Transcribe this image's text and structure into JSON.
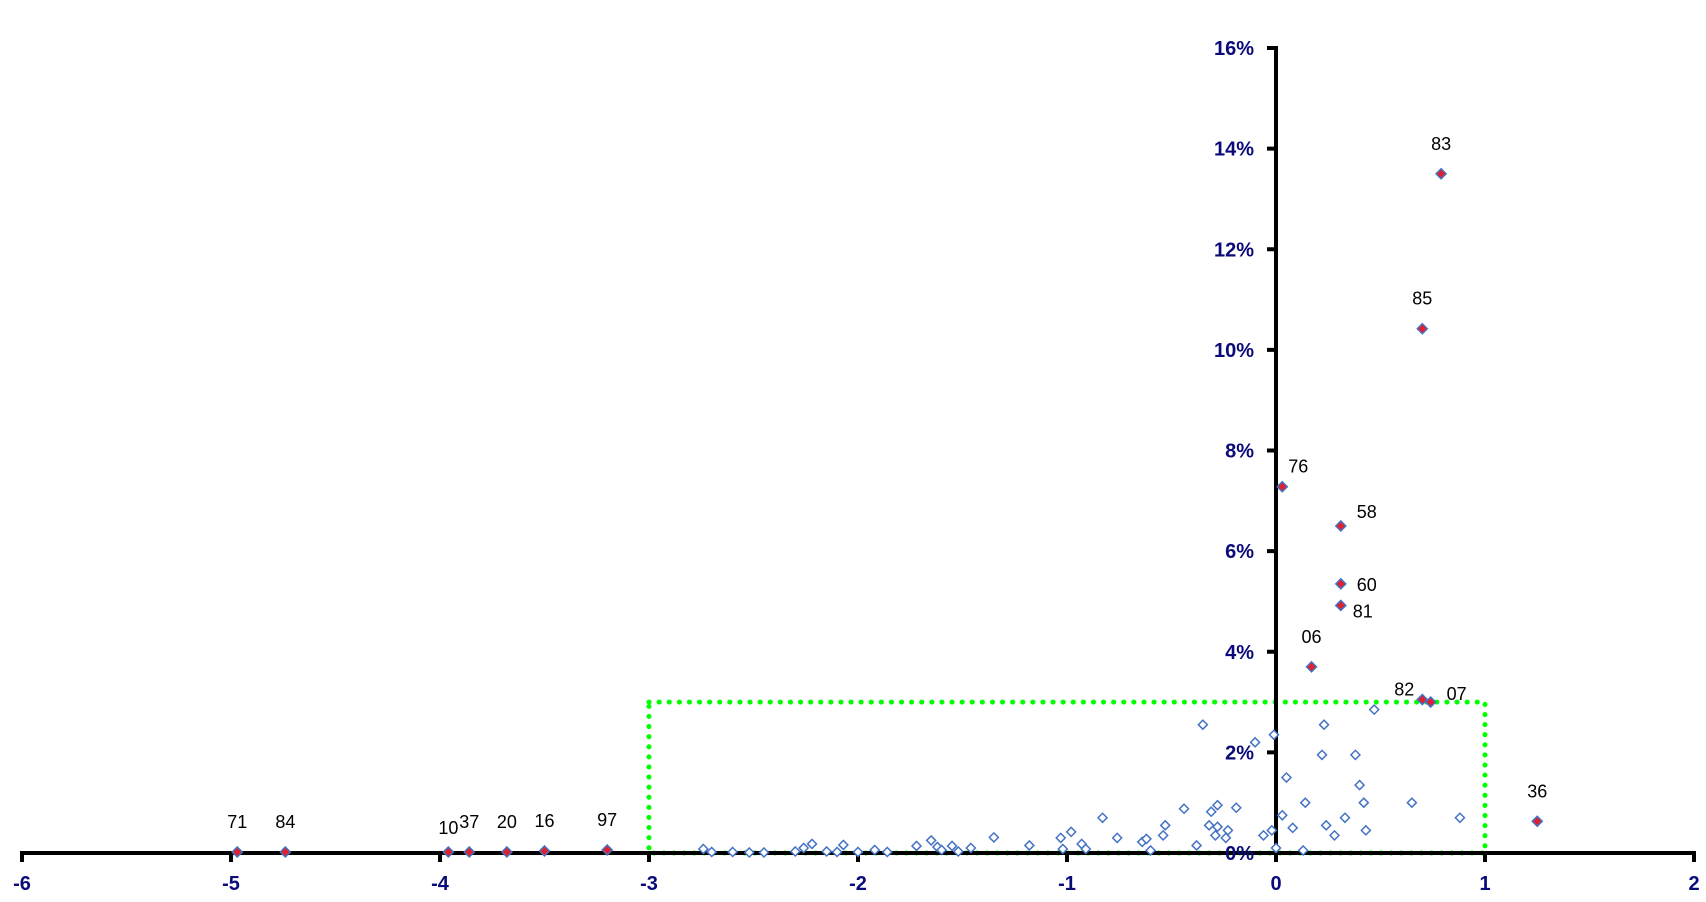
{
  "chart_data": {
    "type": "scatter",
    "title": "",
    "xlabel": "",
    "ylabel": "",
    "xlim": [
      -6,
      2
    ],
    "ylim": [
      0,
      0.16
    ],
    "x_ticks": [
      {
        "value": -6,
        "label": "-6"
      },
      {
        "value": -5,
        "label": "-5"
      },
      {
        "value": -4,
        "label": "-4"
      },
      {
        "value": -3,
        "label": "-3"
      },
      {
        "value": -2,
        "label": "-2"
      },
      {
        "value": -1,
        "label": "-1"
      },
      {
        "value": 0,
        "label": "0"
      },
      {
        "value": 1,
        "label": "1"
      },
      {
        "value": 2,
        "label": "2"
      }
    ],
    "y_ticks": [
      {
        "value": 0,
        "label": "0%"
      },
      {
        "value": 0.02,
        "label": "2%"
      },
      {
        "value": 0.04,
        "label": "4%"
      },
      {
        "value": 0.06,
        "label": "6%"
      },
      {
        "value": 0.08,
        "label": "8%"
      },
      {
        "value": 0.1,
        "label": "10%"
      },
      {
        "value": 0.12,
        "label": "12%"
      },
      {
        "value": 0.14,
        "label": "14%"
      },
      {
        "value": 0.16,
        "label": "16%"
      }
    ],
    "highlight_box": {
      "x": [
        -3,
        1
      ],
      "y": [
        0,
        0.03
      ],
      "color": "#00ff00",
      "style": "dotted"
    },
    "colors": {
      "axis": "#000000",
      "tick_text": "#0a0a7a",
      "marker_edge": "#4472c4",
      "highlight_fill": "#e0202c"
    },
    "series": [
      {
        "marker": "diamond-outline",
        "points": [
          {
            "x": -2.74,
            "y": 0.0008
          },
          {
            "x": -2.7,
            "y": 0.0002
          },
          {
            "x": -2.6,
            "y": 0.0002
          },
          {
            "x": -2.52,
            "y": 0.0001
          },
          {
            "x": -2.45,
            "y": 0.0001
          },
          {
            "x": -2.3,
            "y": 0.0003
          },
          {
            "x": -2.26,
            "y": 0.001
          },
          {
            "x": -2.22,
            "y": 0.0018
          },
          {
            "x": -2.15,
            "y": 0.0003
          },
          {
            "x": -2.1,
            "y": 0.0002
          },
          {
            "x": -2.07,
            "y": 0.0016
          },
          {
            "x": -2.0,
            "y": 0.0002
          },
          {
            "x": -1.92,
            "y": 0.0006
          },
          {
            "x": -1.86,
            "y": 0.0002
          },
          {
            "x": -1.72,
            "y": 0.0014
          },
          {
            "x": -1.65,
            "y": 0.0025
          },
          {
            "x": -1.62,
            "y": 0.0012
          },
          {
            "x": -1.6,
            "y": 0.0006
          },
          {
            "x": -1.55,
            "y": 0.0014
          },
          {
            "x": -1.52,
            "y": 0.0003
          },
          {
            "x": -1.46,
            "y": 0.001
          },
          {
            "x": -1.35,
            "y": 0.0031
          },
          {
            "x": -1.18,
            "y": 0.0015
          },
          {
            "x": -1.03,
            "y": 0.003
          },
          {
            "x": -1.02,
            "y": 0.0008
          },
          {
            "x": -0.98,
            "y": 0.0042
          },
          {
            "x": -0.93,
            "y": 0.0018
          },
          {
            "x": -0.91,
            "y": 0.0008
          },
          {
            "x": -0.83,
            "y": 0.007
          },
          {
            "x": -0.76,
            "y": 0.003
          },
          {
            "x": -0.64,
            "y": 0.0022
          },
          {
            "x": -0.62,
            "y": 0.0028
          },
          {
            "x": -0.6,
            "y": 0.0005
          },
          {
            "x": -0.54,
            "y": 0.0035
          },
          {
            "x": -0.53,
            "y": 0.0055
          },
          {
            "x": -0.44,
            "y": 0.0088
          },
          {
            "x": -0.38,
            "y": 0.0015
          },
          {
            "x": -0.35,
            "y": 0.0255
          },
          {
            "x": -0.32,
            "y": 0.0055
          },
          {
            "x": -0.31,
            "y": 0.0082
          },
          {
            "x": -0.29,
            "y": 0.0035
          },
          {
            "x": -0.28,
            "y": 0.0052
          },
          {
            "x": -0.28,
            "y": 0.0095
          },
          {
            "x": -0.24,
            "y": 0.003
          },
          {
            "x": -0.23,
            "y": 0.0045
          },
          {
            "x": -0.19,
            "y": 0.009
          },
          {
            "x": -0.1,
            "y": 0.022
          },
          {
            "x": -0.06,
            "y": 0.0035
          },
          {
            "x": -0.02,
            "y": 0.0045
          },
          {
            "x": -0.01,
            "y": 0.0235
          },
          {
            "x": 0.0,
            "y": 0.001
          },
          {
            "x": 0.03,
            "y": 0.0075
          },
          {
            "x": 0.05,
            "y": 0.015
          },
          {
            "x": 0.08,
            "y": 0.005
          },
          {
            "x": 0.13,
            "y": 0.0005
          },
          {
            "x": 0.14,
            "y": 0.01
          },
          {
            "x": 0.22,
            "y": 0.0195
          },
          {
            "x": 0.23,
            "y": 0.0255
          },
          {
            "x": 0.24,
            "y": 0.0055
          },
          {
            "x": 0.28,
            "y": 0.0035
          },
          {
            "x": 0.33,
            "y": 0.007
          },
          {
            "x": 0.38,
            "y": 0.0195
          },
          {
            "x": 0.4,
            "y": 0.0135
          },
          {
            "x": 0.42,
            "y": 0.01
          },
          {
            "x": 0.43,
            "y": 0.0045
          },
          {
            "x": 0.47,
            "y": 0.0285
          },
          {
            "x": 0.65,
            "y": 0.01
          },
          {
            "x": 0.88,
            "y": 0.007
          }
        ]
      },
      {
        "marker": "diamond-filled",
        "points": [
          {
            "x": -4.97,
            "y": 0.0002,
            "label": "71"
          },
          {
            "x": -4.74,
            "y": 0.0002,
            "label": "84"
          },
          {
            "x": -3.96,
            "y": 0.0002,
            "label": "10"
          },
          {
            "x": -3.86,
            "y": 0.0002,
            "label": "37"
          },
          {
            "x": -3.68,
            "y": 0.0002,
            "label": "20"
          },
          {
            "x": -3.5,
            "y": 0.0004,
            "label": "16"
          },
          {
            "x": -3.2,
            "y": 0.0006,
            "label": "97"
          },
          {
            "x": 0.03,
            "y": 0.0728,
            "label": "76"
          },
          {
            "x": 0.17,
            "y": 0.037,
            "label": "06"
          },
          {
            "x": 0.31,
            "y": 0.065,
            "label": "58"
          },
          {
            "x": 0.31,
            "y": 0.0535,
            "label": "60"
          },
          {
            "x": 0.31,
            "y": 0.0492,
            "label": "81"
          },
          {
            "x": 0.7,
            "y": 0.0305,
            "label": "82"
          },
          {
            "x": 0.74,
            "y": 0.03,
            "label": "07"
          },
          {
            "x": 0.7,
            "y": 0.1042,
            "label": "85"
          },
          {
            "x": 0.79,
            "y": 0.135,
            "label": "83"
          },
          {
            "x": 1.25,
            "y": 0.0063,
            "label": "36"
          }
        ]
      }
    ]
  }
}
